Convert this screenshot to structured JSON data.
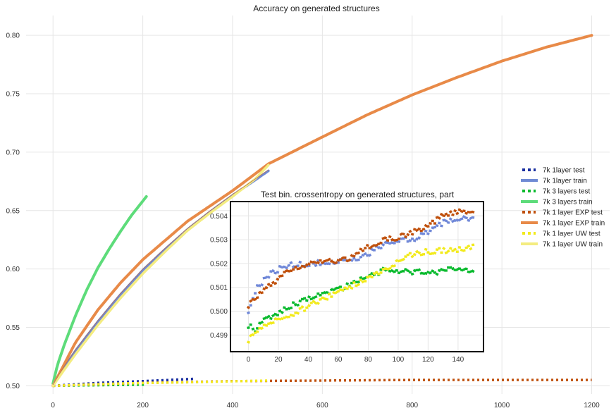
{
  "chart_data": [
    {
      "type": "line",
      "title": "Accuracy on generated structures",
      "xlabel": "",
      "ylabel": "",
      "xlim": [
        -60,
        1240
      ],
      "ylim": [
        0.493,
        0.817
      ],
      "xticks": [
        0,
        200,
        400,
        600,
        800,
        1000,
        1200
      ],
      "yticks": [
        0.5,
        0.55,
        0.6,
        0.65,
        0.7,
        0.75,
        0.8
      ],
      "ytick_labels": [
        "0.50",
        "0.55",
        "0.60",
        "0.65",
        "0.70",
        "0.75",
        "0.80"
      ],
      "grid": true,
      "legend_position": "right",
      "series": [
        {
          "name": "7k 1layer test",
          "style": "dotted",
          "color": "#1a2fa0",
          "x_end": 315,
          "points": [
            [
              0,
              0.5
            ],
            [
              100,
              0.5025
            ],
            [
              200,
              0.504
            ],
            [
              315,
              0.506
            ]
          ]
        },
        {
          "name": "7k 1layer train",
          "style": "solid",
          "color": "#6f8ad4",
          "x_end": 480,
          "points": [
            [
              0,
              0.5
            ],
            [
              20,
              0.513
            ],
            [
              50,
              0.53
            ],
            [
              100,
              0.555
            ],
            [
              150,
              0.578
            ],
            [
              200,
              0.599
            ],
            [
              250,
              0.617
            ],
            [
              300,
              0.634
            ],
            [
              350,
              0.649
            ],
            [
              400,
              0.663
            ],
            [
              450,
              0.676
            ],
            [
              480,
              0.684
            ]
          ]
        },
        {
          "name": "7k 3 layers test",
          "style": "dotted",
          "color": "#0aba2e",
          "x_end": 205,
          "points": [
            [
              0,
              0.5
            ],
            [
              100,
              0.5005
            ],
            [
              205,
              0.501
            ]
          ]
        },
        {
          "name": "7k 3 layers train",
          "style": "solid",
          "color": "#5ddc7a",
          "x_end": 210,
          "points": [
            [
              0,
              0.502
            ],
            [
              10,
              0.518
            ],
            [
              25,
              0.535
            ],
            [
              50,
              0.56
            ],
            [
              75,
              0.582
            ],
            [
              100,
              0.601
            ],
            [
              125,
              0.617
            ],
            [
              150,
              0.632
            ],
            [
              175,
              0.646
            ],
            [
              210,
              0.663
            ]
          ]
        },
        {
          "name": "7k 1 layer EXP test",
          "style": "dotted",
          "color": "#c0500c",
          "x_end": 1200,
          "points": [
            [
              0,
              0.5
            ],
            [
              200,
              0.5025
            ],
            [
              400,
              0.504
            ],
            [
              600,
              0.5045
            ],
            [
              800,
              0.505
            ],
            [
              1000,
              0.505
            ],
            [
              1200,
              0.505
            ]
          ]
        },
        {
          "name": "7k 1 layer EXP train",
          "style": "solid",
          "color": "#e88a48",
          "x_end": 1200,
          "points": [
            [
              0,
              0.5
            ],
            [
              50,
              0.537
            ],
            [
              100,
              0.565
            ],
            [
              150,
              0.588
            ],
            [
              200,
              0.608
            ],
            [
              300,
              0.641
            ],
            [
              400,
              0.667
            ],
            [
              480,
              0.69
            ],
            [
              600,
              0.713
            ],
            [
              700,
              0.732
            ],
            [
              800,
              0.749
            ],
            [
              900,
              0.764
            ],
            [
              1000,
              0.778
            ],
            [
              1100,
              0.79
            ],
            [
              1200,
              0.8
            ]
          ]
        },
        {
          "name": "7k 1 layer UW test",
          "style": "dotted",
          "color": "#f2ea1c",
          "x_end": 480,
          "points": [
            [
              0,
              0.5
            ],
            [
              150,
              0.502
            ],
            [
              300,
              0.503
            ],
            [
              480,
              0.5045
            ]
          ]
        },
        {
          "name": "7k 1 layer UW train",
          "style": "solid",
          "color": "#f4ec80",
          "x_end": 480,
          "points": [
            [
              0,
              0.5
            ],
            [
              20,
              0.511
            ],
            [
              50,
              0.527
            ],
            [
              100,
              0.552
            ],
            [
              150,
              0.575
            ],
            [
              200,
              0.596
            ],
            [
              250,
              0.615
            ],
            [
              300,
              0.633
            ],
            [
              350,
              0.648
            ],
            [
              400,
              0.662
            ],
            [
              450,
              0.677
            ],
            [
              480,
              0.689
            ]
          ]
        }
      ]
    },
    {
      "type": "scatter",
      "title": "Test bin. crossentropy on generated structures, part",
      "xlabel": "",
      "ylabel": "",
      "xlim": [
        -12,
        157
      ],
      "ylim": [
        0.4983,
        0.5046
      ],
      "xticks": [
        0,
        20,
        40,
        60,
        80,
        100,
        120,
        140
      ],
      "yticks": [
        0.499,
        0.5,
        0.501,
        0.502,
        0.503,
        0.504
      ],
      "ytick_labels": [
        "0.499",
        "0.500",
        "0.501",
        "0.502",
        "0.503",
        "0.504"
      ],
      "grid": true,
      "series": [
        {
          "name": "7k 1layer test",
          "color": "#7088d8",
          "x_end": 150,
          "trend": [
            [
              0,
              0.5
            ],
            [
              5,
              0.5009
            ],
            [
              15,
              0.5016
            ],
            [
              25,
              0.5019
            ],
            [
              40,
              0.502
            ],
            [
              60,
              0.5021
            ],
            [
              70,
              0.5021
            ],
            [
              80,
              0.5024
            ],
            [
              90,
              0.5028
            ],
            [
              100,
              0.503
            ],
            [
              110,
              0.503
            ],
            [
              120,
              0.5033
            ],
            [
              130,
              0.5037
            ],
            [
              140,
              0.5039
            ],
            [
              150,
              0.5039
            ]
          ]
        },
        {
          "name": "7k 3 layers test",
          "color": "#0aba2e",
          "x_end": 150,
          "trend": [
            [
              0,
              0.4994
            ],
            [
              5,
              0.4992
            ],
            [
              10,
              0.4996
            ],
            [
              20,
              0.4999
            ],
            [
              30,
              0.5003
            ],
            [
              40,
              0.5005
            ],
            [
              50,
              0.5007
            ],
            [
              60,
              0.5009
            ],
            [
              70,
              0.5012
            ],
            [
              80,
              0.5015
            ],
            [
              90,
              0.5017
            ],
            [
              100,
              0.5017
            ],
            [
              120,
              0.5016
            ],
            [
              140,
              0.5018
            ],
            [
              150,
              0.5016
            ]
          ]
        },
        {
          "name": "7k 1 layer EXP test",
          "color": "#c0500c",
          "x_end": 150,
          "trend": [
            [
              0,
              0.5002
            ],
            [
              5,
              0.5006
            ],
            [
              15,
              0.5011
            ],
            [
              25,
              0.5016
            ],
            [
              40,
              0.502
            ],
            [
              60,
              0.5021
            ],
            [
              70,
              0.5023
            ],
            [
              80,
              0.5027
            ],
            [
              90,
              0.503
            ],
            [
              100,
              0.5031
            ],
            [
              110,
              0.5033
            ],
            [
              120,
              0.5036
            ],
            [
              130,
              0.504
            ],
            [
              140,
              0.5042
            ],
            [
              150,
              0.5041
            ]
          ]
        },
        {
          "name": "7k 1 layer UW test",
          "color": "#f2ea1c",
          "x_end": 150,
          "trend": [
            [
              0,
              0.4988
            ],
            [
              5,
              0.4991
            ],
            [
              10,
              0.4994
            ],
            [
              20,
              0.4997
            ],
            [
              30,
              0.4999
            ],
            [
              40,
              0.5002
            ],
            [
              50,
              0.5005
            ],
            [
              60,
              0.5008
            ],
            [
              70,
              0.5011
            ],
            [
              80,
              0.5014
            ],
            [
              90,
              0.5017
            ],
            [
              100,
              0.5021
            ],
            [
              110,
              0.5024
            ],
            [
              120,
              0.5025
            ],
            [
              140,
              0.5026
            ],
            [
              150,
              0.5027
            ]
          ]
        }
      ]
    }
  ]
}
